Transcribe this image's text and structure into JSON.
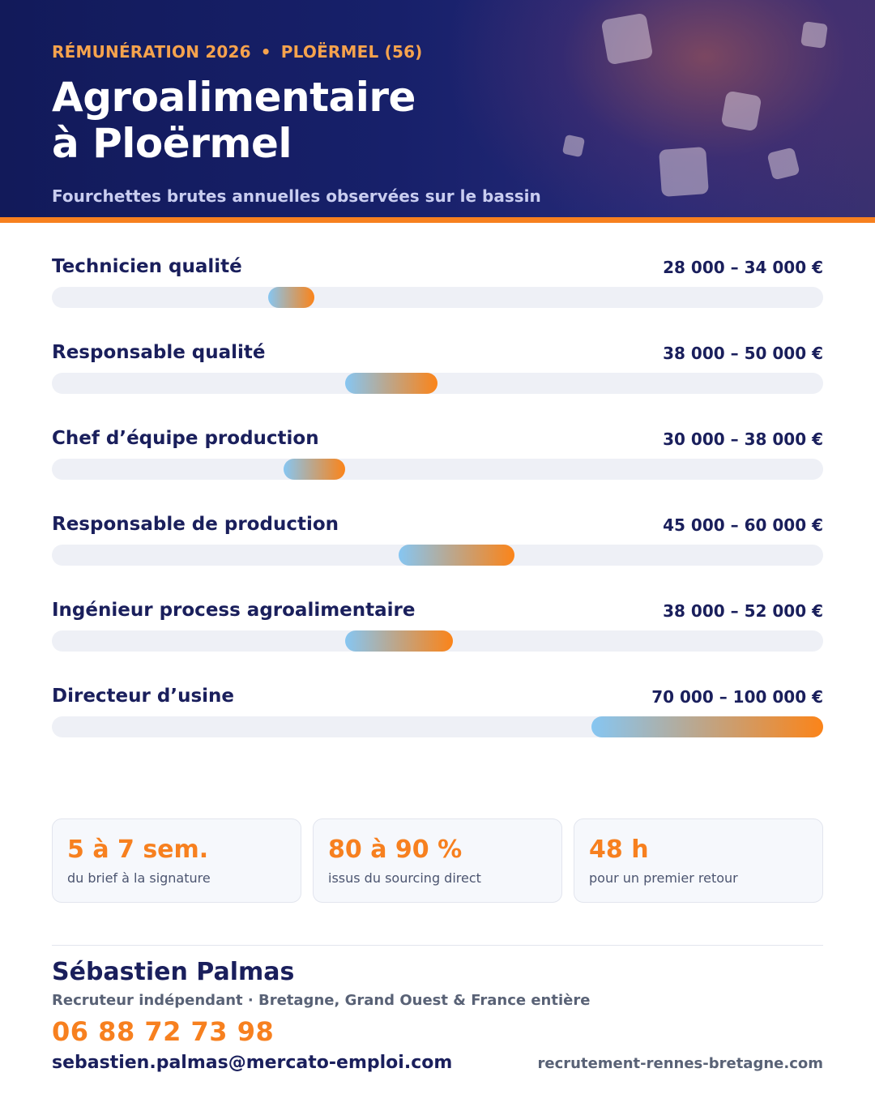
{
  "header": {
    "eyebrow_left": "RÉMUNÉRATION 2026",
    "eyebrow_sep": "•",
    "eyebrow_right": "PLOËRMEL (56)",
    "title_line1": "Agroalimentaire",
    "title_line2": "à Ploërmel",
    "subtitle": "Fourchettes brutes annuelles observées sur le bassin"
  },
  "colors": {
    "navy": "#17206a",
    "accent_orange": "#f7801f",
    "bar_gradient_start": "#86c6f2",
    "bar_gradient_end": "#fb8419",
    "track": "#eef0f6"
  },
  "chart_data": {
    "type": "bar",
    "orientation": "horizontal-range",
    "scale_unit": "€",
    "scale_min": 0,
    "scale_max": 100000,
    "categories": [
      "Technicien qualité",
      "Responsable qualité",
      "Chef d’équipe production",
      "Responsable de production",
      "Ingénieur process agroalimentaire",
      "Directeur d’usine"
    ],
    "ranges": [
      {
        "label": "Technicien qualité",
        "min": 28000,
        "max": 34000,
        "display": "28 000 – 34 000 €"
      },
      {
        "label": "Responsable qualité",
        "min": 38000,
        "max": 50000,
        "display": "38 000 – 50 000 €"
      },
      {
        "label": "Chef d’équipe production",
        "min": 30000,
        "max": 38000,
        "display": "30 000 – 38 000 €"
      },
      {
        "label": "Responsable de production",
        "min": 45000,
        "max": 60000,
        "display": "45 000 – 60 000 €"
      },
      {
        "label": "Ingénieur process agroalimentaire",
        "min": 38000,
        "max": 52000,
        "display": "38 000 – 52 000 €"
      },
      {
        "label": "Directeur d’usine",
        "min": 70000,
        "max": 100000,
        "display": "70 000 – 100 000 €"
      }
    ]
  },
  "stats": [
    {
      "value": "5 à 7 sem.",
      "label": "du brief à la signature"
    },
    {
      "value": "80 à 90 %",
      "label": "issus du sourcing direct"
    },
    {
      "value": "48 h",
      "label": "pour un premier retour"
    }
  ],
  "contact": {
    "name": "Sébastien Palmas",
    "role": "Recruteur indépendant · Bretagne, Grand Ouest & France entière",
    "phone": "06 88 72 73 98",
    "email": "sebastien.palmas@mercato-emploi.com",
    "website": "recrutement-rennes-bretagne.com"
  }
}
